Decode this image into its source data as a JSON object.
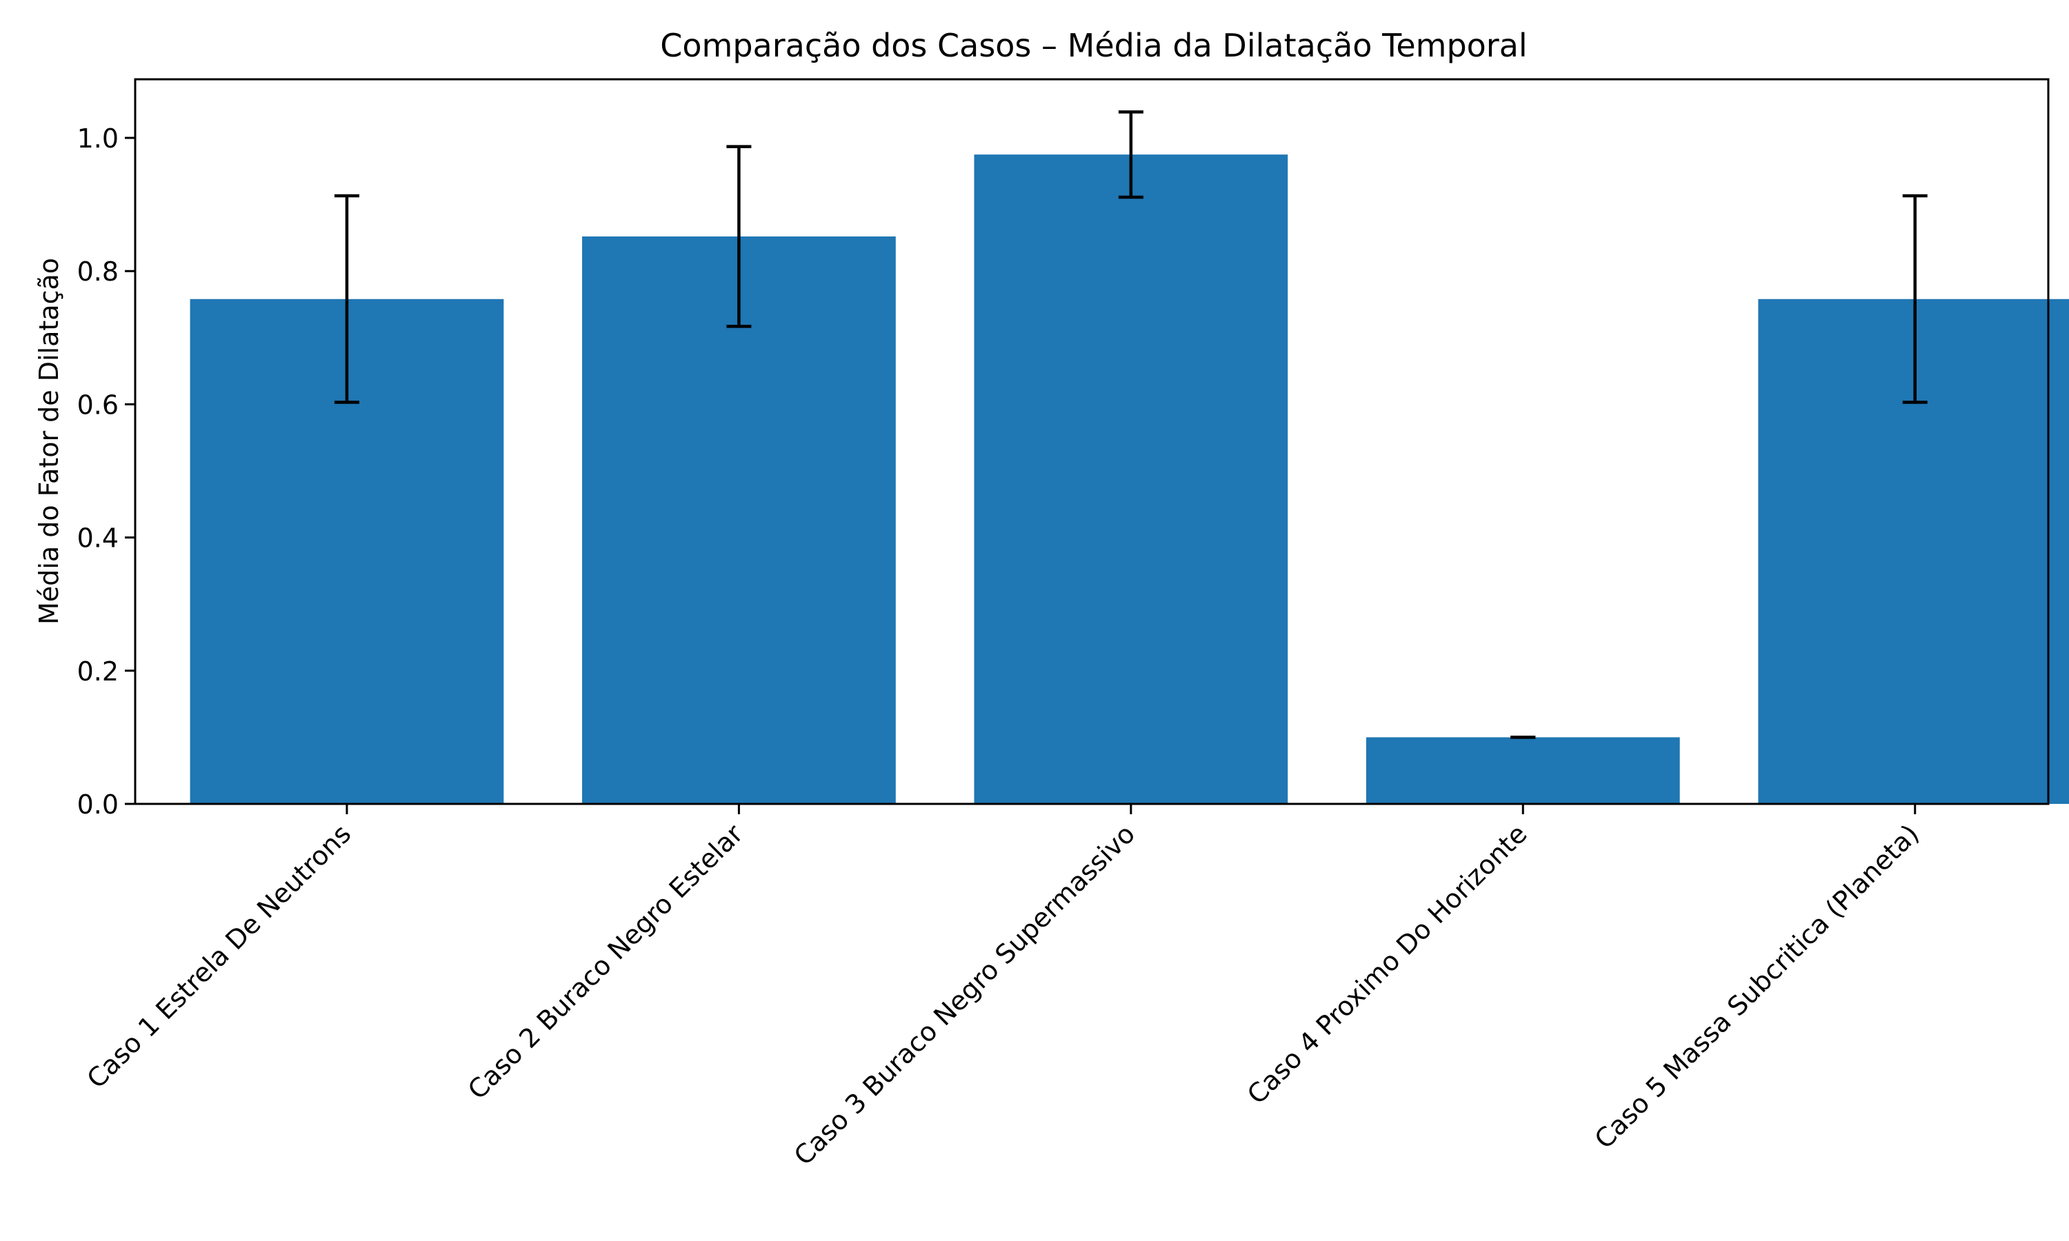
{
  "chart_data": {
    "type": "bar",
    "title": "Comparação dos Casos – Média da Dilatação Temporal",
    "xlabel": "",
    "ylabel": "Média do Fator de Dilatação",
    "categories": [
      "Caso 1  Estrela De Neutrons",
      "Caso 2  Buraco Negro Estelar",
      "Caso 3  Buraco Negro Supermassivo",
      "Caso 4  Proximo Do Horizonte",
      "Caso 5  Massa Subcritica (Planeta)"
    ],
    "values": [
      0.758,
      0.852,
      0.975,
      0.1,
      0.758
    ],
    "errors": [
      0.155,
      0.135,
      0.064,
      0.0,
      0.155
    ],
    "ylim": [
      0,
      1.088
    ],
    "yticks": [
      0.0,
      0.2,
      0.4,
      0.6,
      0.8,
      1.0
    ],
    "ytick_labels": [
      "0.0",
      "0.2",
      "0.4",
      "0.6",
      "0.8",
      "1.0"
    ],
    "bar_color": "#1f77b4",
    "error_color": "#000000",
    "grid": false,
    "legend": "none"
  }
}
